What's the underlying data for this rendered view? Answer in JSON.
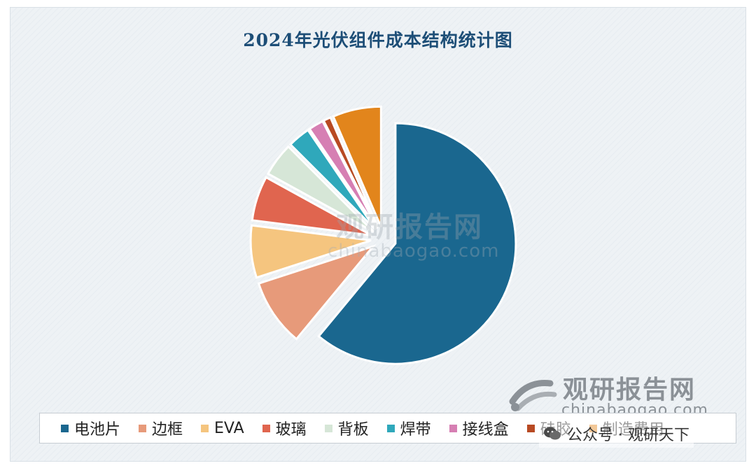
{
  "title": "2024年光伏组件成本结构统计图",
  "chart_data": {
    "type": "pie",
    "title": "2024年光伏组件成本结构统计图",
    "slices": [
      {
        "label": "电池片",
        "value": 61.0,
        "color": "#1a678f"
      },
      {
        "label": "边框",
        "value": 9.0,
        "color": "#e79a7a"
      },
      {
        "label": "EVA",
        "value": 7.0,
        "color": "#f5c57f"
      },
      {
        "label": "玻璃",
        "value": 6.0,
        "color": "#e0654f"
      },
      {
        "label": "背板",
        "value": 4.5,
        "color": "#d6e6d7"
      },
      {
        "label": "焊带",
        "value": 3.0,
        "color": "#2fa8bb"
      },
      {
        "label": "接线盒",
        "value": 2.0,
        "color": "#d67fb3"
      },
      {
        "label": "硅胶",
        "value": 1.0,
        "color": "#b84a23"
      },
      {
        "label": "制造费用",
        "value": 6.5,
        "color": "#e2851c"
      }
    ],
    "legend_position": "bottom"
  },
  "watermark": {
    "center_cn": "观研报告网",
    "center_en": "chinabaogao.com",
    "logo_cn": "观研报告网",
    "logo_en": "chinabaogao.com"
  },
  "overlay": {
    "text": "公众号 · 观研天下"
  }
}
